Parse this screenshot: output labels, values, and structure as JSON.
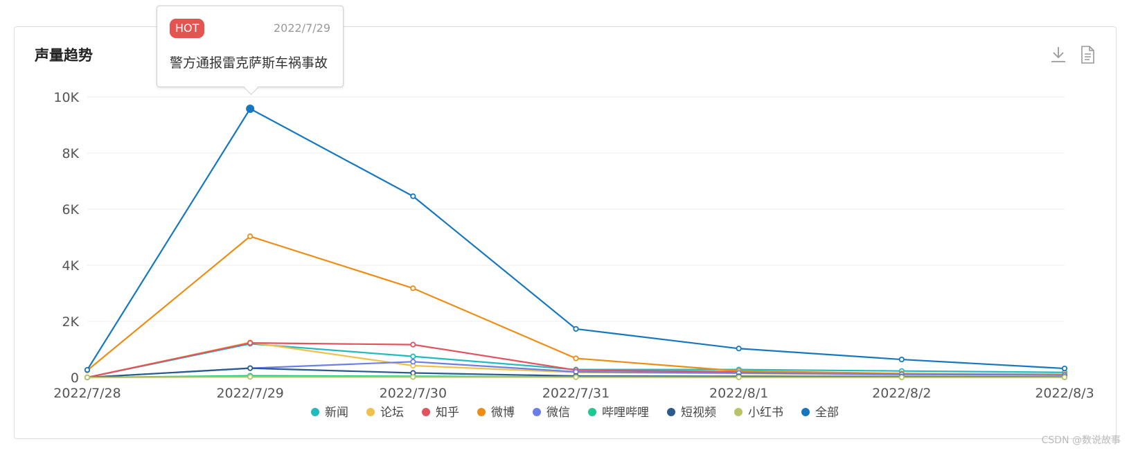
{
  "card": {
    "title": "声量趋势"
  },
  "toolbar": {
    "download_icon": "download-icon",
    "export_icon": "document-icon"
  },
  "tooltip": {
    "badge": "HOT",
    "date": "2022/7/29",
    "text": "警方通报雷克萨斯车祸事故"
  },
  "watermark": "CSDN @数说故事",
  "chart_data": {
    "type": "line",
    "categories": [
      "2022/7/28",
      "2022/7/29",
      "2022/7/30",
      "2022/7/31",
      "2022/8/1",
      "2022/8/2",
      "2022/8/3"
    ],
    "ylim": [
      0,
      10000
    ],
    "yticks": [
      0,
      2000,
      4000,
      6000,
      8000,
      10000
    ],
    "ytick_labels": [
      "0",
      "2K",
      "4K",
      "6K",
      "8K",
      "10K"
    ],
    "grid": true,
    "legend_position": "bottom",
    "highlight": {
      "series": "全部",
      "category": "2022/7/29"
    },
    "series": [
      {
        "name": "新闻",
        "color": "#1fbbbf",
        "values": [
          0,
          1200,
          750,
          280,
          280,
          230,
          180
        ]
      },
      {
        "name": "论坛",
        "color": "#f0c04a",
        "values": [
          0,
          1250,
          420,
          180,
          140,
          100,
          90
        ]
      },
      {
        "name": "知乎",
        "color": "#e2525f",
        "values": [
          0,
          1230,
          1170,
          260,
          200,
          130,
          90
        ]
      },
      {
        "name": "微博",
        "color": "#ee8c14",
        "values": [
          250,
          5030,
          3180,
          680,
          230,
          140,
          110
        ]
      },
      {
        "name": "微信",
        "color": "#6c7fe8",
        "values": [
          0,
          330,
          560,
          200,
          160,
          110,
          80
        ]
      },
      {
        "name": "哔哩哔哩",
        "color": "#1cc98f",
        "values": [
          0,
          60,
          40,
          20,
          10,
          10,
          5
        ]
      },
      {
        "name": "短视频",
        "color": "#2a5b8f",
        "values": [
          0,
          330,
          160,
          50,
          40,
          30,
          20
        ]
      },
      {
        "name": "小红书",
        "color": "#b9c46a",
        "values": [
          0,
          20,
          15,
          10,
          5,
          5,
          5
        ]
      },
      {
        "name": "全部",
        "color": "#1577bf",
        "values": [
          270,
          9580,
          6460,
          1730,
          1030,
          640,
          320
        ]
      }
    ]
  }
}
